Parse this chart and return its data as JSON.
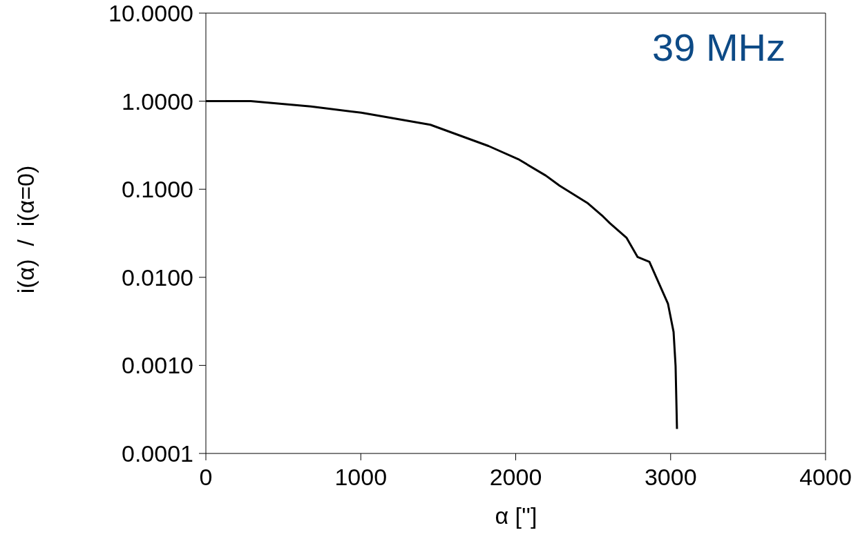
{
  "chart_data": {
    "type": "line",
    "xlabel": "α ['']",
    "ylabel": "i(α)  /  i(α=0)",
    "annotations": [
      "39 MHz"
    ],
    "x": [
      0,
      290,
      678,
      1003,
      1449,
      1824,
      2016,
      2194,
      2283,
      2462,
      2564,
      2609,
      2716,
      2787,
      2863,
      2983,
      3019,
      3032,
      3041
    ],
    "series": [
      {
        "color": "#000000",
        "values": [
          1.0,
          1.0,
          0.87,
          0.74,
          0.54,
          0.31,
          0.22,
          0.143,
          0.11,
          0.07,
          0.049,
          0.041,
          0.028,
          0.017,
          0.015,
          0.005,
          0.0024,
          0.00098,
          0.00019
        ]
      }
    ],
    "xlim": [
      0,
      4000
    ],
    "xticks": [
      0,
      1000,
      2000,
      3000,
      4000
    ],
    "ylim": [
      0.0001,
      10
    ],
    "yticks": [
      {
        "value": 0.0001,
        "label": "0.0001"
      },
      {
        "value": 0.001,
        "label": "0.0010"
      },
      {
        "value": 0.01,
        "label": "0.0100"
      },
      {
        "value": 0.1,
        "label": "0.1000"
      },
      {
        "value": 1,
        "label": "1.0000"
      },
      {
        "value": 10,
        "label": "10.0000"
      }
    ],
    "log": true,
    "grid": false,
    "legend": false,
    "marker": "none",
    "line_style": "solid"
  }
}
